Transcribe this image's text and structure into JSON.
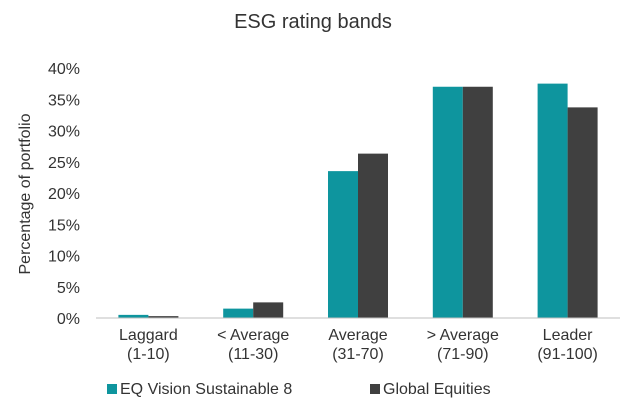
{
  "chart_data": {
    "type": "bar",
    "title": "ESG rating bands",
    "xlabel": "",
    "ylabel": "Percentage of portfolio",
    "categories": [
      [
        "Laggard",
        "(1-10)"
      ],
      [
        "< Average",
        "(11-30)"
      ],
      [
        "Average",
        "(31-70)"
      ],
      [
        "> Average",
        "(71-90)"
      ],
      [
        "Leader",
        "(91-100)"
      ]
    ],
    "series": [
      {
        "name": "EQ Vision Sustainable 8",
        "color": "#0e959e",
        "values": [
          0.5,
          1.5,
          23.5,
          37.0,
          37.5
        ]
      },
      {
        "name": "Global Equities",
        "color": "#404040",
        "values": [
          0.3,
          2.5,
          26.3,
          37.0,
          33.7
        ]
      }
    ],
    "ylim": [
      0,
      40
    ],
    "yticks": [
      "0%",
      "5%",
      "10%",
      "15%",
      "20%",
      "25%",
      "30%",
      "35%",
      "40%"
    ],
    "grid": false,
    "legend_position": "bottom"
  }
}
